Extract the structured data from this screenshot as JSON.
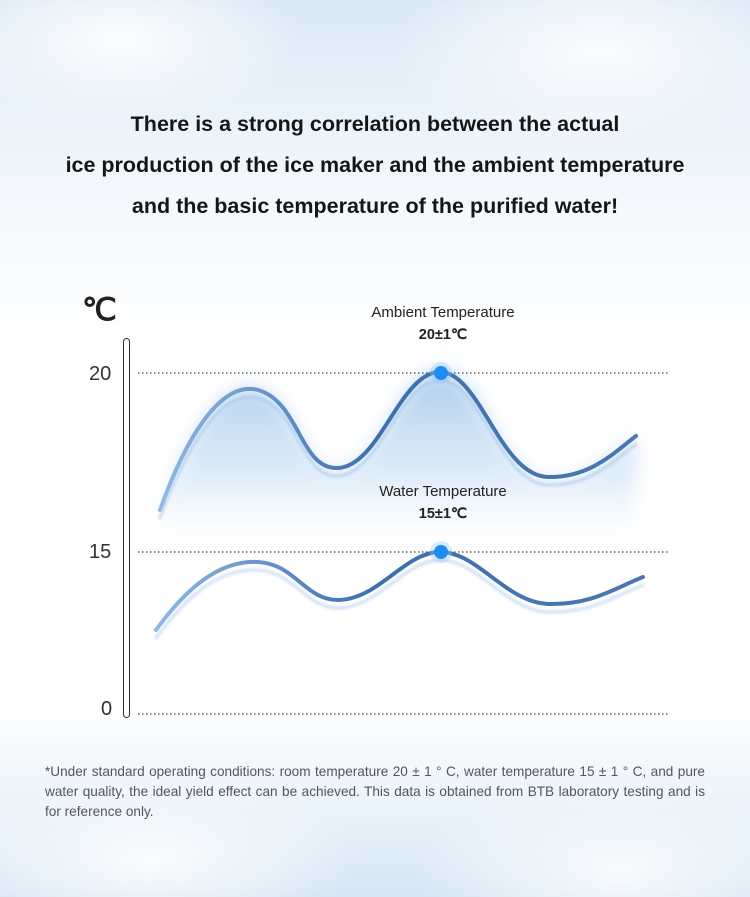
{
  "headline": {
    "line1": "There is a strong correlation between the actual",
    "line2": "ice production of the ice maker and the ambient temperature",
    "line3": "and the basic temperature of the purified water!"
  },
  "colors": {
    "curve": "#3a6aa8",
    "dot": "#1e8cf2",
    "fill": "#9cc4ec"
  },
  "chart_data": {
    "type": "line",
    "unit": "℃",
    "yticks": [
      "20",
      "15",
      "0"
    ],
    "ytick_values": [
      20,
      15,
      0
    ],
    "series": [
      {
        "name": "Ambient Temperature",
        "value_label": "20±1℃",
        "highlight_value": 20
      },
      {
        "name": "Water Temperature",
        "value_label": "15±1℃",
        "highlight_value": 15
      }
    ],
    "reference_lines": [
      20,
      15,
      0
    ],
    "grid": false
  },
  "footnote": "*Under standard operating conditions: room temperature 20 ± 1 ° C, water temperature 15 ± 1 ° C, and pure water quality, the ideal yield effect can be achieved. This data is obtained from BTB laboratory testing and is for reference only."
}
